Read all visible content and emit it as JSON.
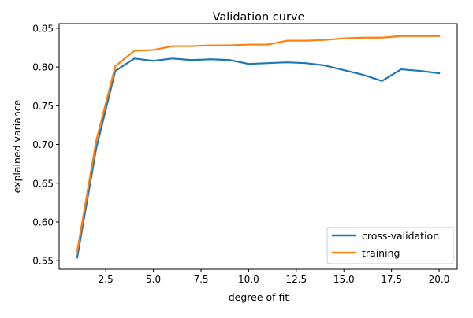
{
  "chart_data": {
    "type": "line",
    "title": "Validation curve",
    "xlabel": "degree of fit",
    "ylabel": "explained variance",
    "xlim": [
      0.05,
      20.95
    ],
    "ylim": [
      0.539,
      0.856
    ],
    "x_ticks": [
      2.5,
      5.0,
      7.5,
      10.0,
      12.5,
      15.0,
      17.5,
      20.0
    ],
    "x_tick_labels": [
      "2.5",
      "5.0",
      "7.5",
      "10.0",
      "12.5",
      "15.0",
      "17.5",
      "20.0"
    ],
    "y_ticks": [
      0.55,
      0.6,
      0.65,
      0.7,
      0.75,
      0.8,
      0.85
    ],
    "y_tick_labels": [
      "0.55",
      "0.60",
      "0.65",
      "0.70",
      "0.75",
      "0.80",
      "0.85"
    ],
    "grid": false,
    "legend_position": "lower-right",
    "x": [
      1,
      2,
      3,
      4,
      5,
      6,
      7,
      8,
      9,
      10,
      11,
      12,
      13,
      14,
      15,
      16,
      17,
      18,
      19,
      20
    ],
    "series": [
      {
        "name": "cross-validation",
        "color": "#1f77b4",
        "values": [
          0.554,
          0.695,
          0.795,
          0.811,
          0.808,
          0.811,
          0.809,
          0.81,
          0.809,
          0.804,
          0.805,
          0.806,
          0.805,
          0.802,
          0.796,
          0.79,
          0.782,
          0.797,
          0.795,
          0.792
        ]
      },
      {
        "name": "training",
        "color": "#ff7f0e",
        "values": [
          0.562,
          0.705,
          0.801,
          0.821,
          0.822,
          0.827,
          0.827,
          0.828,
          0.828,
          0.829,
          0.829,
          0.834,
          0.834,
          0.835,
          0.837,
          0.838,
          0.838,
          0.84,
          0.84,
          0.84
        ]
      }
    ]
  }
}
